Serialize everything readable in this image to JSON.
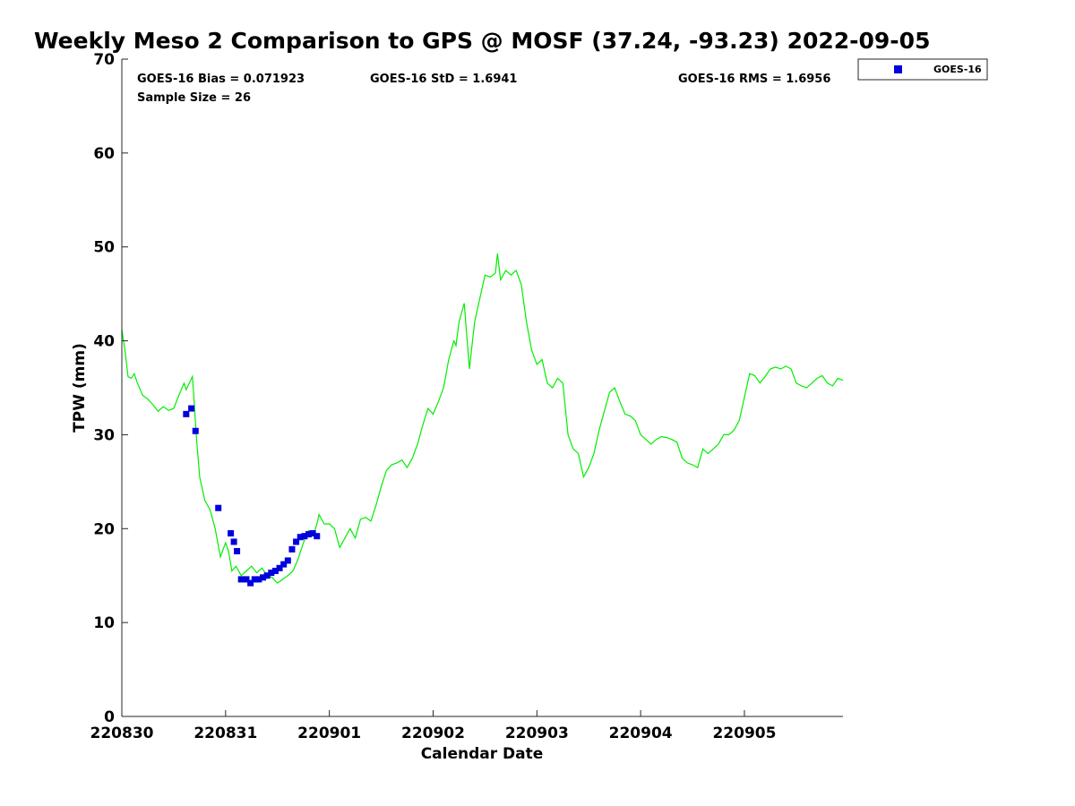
{
  "chart_data": {
    "type": "line",
    "title": "Weekly Meso 2 Comparison to GPS @ MOSF (37.24, -93.23) 2022-09-05",
    "xlabel": "Calendar Date",
    "ylabel": "TPW (mm)",
    "ylim": [
      0,
      70
    ],
    "xlim": [
      0,
      6.95
    ],
    "yticks": [
      0,
      10,
      20,
      30,
      40,
      50,
      60,
      70
    ],
    "xticks": [
      {
        "value": 0,
        "label": "220830"
      },
      {
        "value": 1,
        "label": "220831"
      },
      {
        "value": 2,
        "label": "220901"
      },
      {
        "value": 3,
        "label": "220902"
      },
      {
        "value": 4,
        "label": "220903"
      },
      {
        "value": 5,
        "label": "220904"
      },
      {
        "value": 6,
        "label": "220905"
      }
    ],
    "stats": {
      "bias": "GOES-16 Bias = 0.071923",
      "std": "GOES-16 StD = 1.6941",
      "rms": "GOES-16 RMS = 1.6956",
      "sample": "Sample Size = 26"
    },
    "legend": {
      "label": "GOES-16",
      "position": "top-right-outside"
    },
    "colors": {
      "gps": "#00ee00",
      "goes": "#0000dd"
    },
    "series": [
      {
        "name": "GPS",
        "x": [
          0.0,
          0.03,
          0.06,
          0.09,
          0.12,
          0.15,
          0.2,
          0.25,
          0.3,
          0.35,
          0.4,
          0.45,
          0.5,
          0.55,
          0.6,
          0.62,
          0.65,
          0.68,
          0.7,
          0.72,
          0.75,
          0.8,
          0.85,
          0.9,
          0.95,
          1.0,
          1.03,
          1.06,
          1.1,
          1.15,
          1.2,
          1.25,
          1.3,
          1.35,
          1.4,
          1.45,
          1.5,
          1.55,
          1.6,
          1.65,
          1.7,
          1.75,
          1.8,
          1.85,
          1.88,
          1.9,
          1.95,
          2.0,
          2.05,
          2.1,
          2.15,
          2.2,
          2.25,
          2.3,
          2.35,
          2.4,
          2.45,
          2.5,
          2.55,
          2.6,
          2.65,
          2.7,
          2.75,
          2.8,
          2.85,
          2.9,
          2.95,
          3.0,
          3.05,
          3.1,
          3.15,
          3.2,
          3.22,
          3.25,
          3.3,
          3.35,
          3.4,
          3.45,
          3.5,
          3.55,
          3.6,
          3.62,
          3.65,
          3.7,
          3.75,
          3.8,
          3.85,
          3.9,
          3.95,
          4.0,
          4.05,
          4.1,
          4.15,
          4.2,
          4.25,
          4.3,
          4.35,
          4.4,
          4.45,
          4.5,
          4.55,
          4.6,
          4.65,
          4.7,
          4.75,
          4.8,
          4.85,
          4.9,
          4.95,
          5.0,
          5.05,
          5.1,
          5.15,
          5.2,
          5.25,
          5.3,
          5.35,
          5.4,
          5.45,
          5.5,
          5.55,
          5.6,
          5.65,
          5.7,
          5.75,
          5.8,
          5.85,
          5.9,
          5.95,
          6.0,
          6.05,
          6.1,
          6.15,
          6.2,
          6.25,
          6.3,
          6.35,
          6.4,
          6.45,
          6.5,
          6.55,
          6.6,
          6.65,
          6.7,
          6.75,
          6.8,
          6.85,
          6.9,
          6.95
        ],
        "y": [
          41.2,
          39.0,
          36.2,
          36.0,
          36.5,
          35.5,
          34.2,
          33.8,
          33.2,
          32.5,
          33.0,
          32.6,
          32.8,
          34.2,
          35.5,
          34.8,
          35.5,
          36.2,
          33.0,
          29.5,
          25.5,
          23.0,
          22.0,
          20.0,
          17.0,
          18.5,
          17.5,
          15.5,
          16.0,
          15.0,
          15.5,
          16.0,
          15.3,
          15.8,
          15.0,
          14.8,
          14.2,
          14.6,
          15.0,
          15.5,
          16.8,
          18.5,
          19.8,
          19.5,
          20.5,
          21.5,
          20.5,
          20.5,
          20.0,
          18.0,
          19.0,
          20.0,
          19.0,
          21.0,
          21.2,
          20.8,
          22.5,
          24.5,
          26.2,
          26.8,
          27.0,
          27.3,
          26.5,
          27.5,
          29.0,
          31.0,
          32.8,
          32.2,
          33.5,
          35.0,
          38.0,
          40.0,
          39.5,
          42.0,
          44.0,
          37.0,
          42.0,
          44.5,
          47.0,
          46.8,
          47.2,
          49.3,
          46.5,
          47.5,
          47.0,
          47.5,
          46.0,
          42.0,
          39.0,
          37.5,
          38.0,
          35.5,
          35.0,
          36.0,
          35.5,
          30.0,
          28.5,
          28.0,
          25.5,
          26.5,
          28.0,
          30.5,
          32.5,
          34.5,
          35.0,
          33.5,
          32.2,
          32.0,
          31.5,
          30.0,
          29.5,
          29.0,
          29.5,
          29.8,
          29.7,
          29.5,
          29.2,
          27.5,
          27.0,
          26.8,
          26.5,
          28.5,
          28.0,
          28.5,
          29.0,
          30.0,
          30.0,
          30.5,
          31.5,
          34.0,
          36.5,
          36.3,
          35.5,
          36.2,
          37.0,
          37.2,
          37.0,
          37.3,
          37.0,
          35.5,
          35.2,
          35.0,
          35.5,
          36.0,
          36.3,
          35.5,
          35.2,
          36.0,
          35.8
        ]
      },
      {
        "name": "GOES-16",
        "x": [
          0.62,
          0.67,
          0.71,
          0.93,
          1.05,
          1.08,
          1.11,
          1.15,
          1.2,
          1.24,
          1.28,
          1.32,
          1.36,
          1.4,
          1.44,
          1.48,
          1.52,
          1.56,
          1.6,
          1.64,
          1.68,
          1.72,
          1.76,
          1.8,
          1.84,
          1.88
        ],
        "y": [
          32.2,
          32.8,
          30.4,
          22.2,
          19.5,
          18.6,
          17.6,
          14.6,
          14.6,
          14.2,
          14.6,
          14.6,
          14.8,
          15.0,
          15.3,
          15.5,
          15.8,
          16.2,
          16.6,
          17.8,
          18.6,
          19.1,
          19.2,
          19.4,
          19.5,
          19.2
        ]
      }
    ]
  }
}
